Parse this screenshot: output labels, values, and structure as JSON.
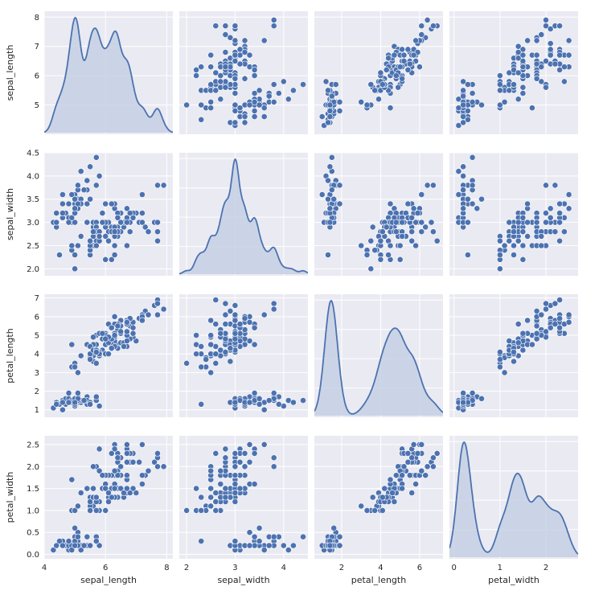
{
  "chart_data": {
    "type": "scatter",
    "kind": "pairplot",
    "diagonal": "kde",
    "variables": [
      "sepal_length",
      "sepal_width",
      "petal_length",
      "petal_width"
    ],
    "axes": {
      "sepal_length": {
        "label": "sepal_length",
        "range": [
          4.0,
          8.2
        ],
        "ticks": [
          4,
          6,
          8
        ],
        "ytick_labels": [
          5,
          6,
          7,
          8
        ]
      },
      "sepal_width": {
        "label": "sepal_width",
        "range": [
          1.85,
          4.5
        ],
        "ticks": [
          2,
          3,
          4
        ],
        "ytick_labels": [
          2.0,
          2.5,
          3.0,
          3.5,
          4.0,
          4.5
        ]
      },
      "petal_length": {
        "label": "petal_length",
        "range": [
          0.6,
          7.2
        ],
        "ticks": [
          2,
          4,
          6
        ],
        "ytick_labels": [
          1,
          2,
          3,
          4,
          5,
          6,
          7
        ]
      },
      "petal_width": {
        "label": "petal_width",
        "range": [
          -0.1,
          2.7
        ],
        "ticks": [
          0,
          1,
          2
        ],
        "ytick_labels": [
          0.0,
          0.5,
          1.0,
          1.5,
          2.0,
          2.5
        ]
      }
    },
    "grid": true,
    "marker_color": "#4C72B0",
    "kde_fill": "#C6D0E4",
    "background": "#EAEAF2",
    "data": [
      [
        5.1,
        3.5,
        1.4,
        0.2
      ],
      [
        4.9,
        3.0,
        1.4,
        0.2
      ],
      [
        4.7,
        3.2,
        1.3,
        0.2
      ],
      [
        4.6,
        3.1,
        1.5,
        0.2
      ],
      [
        5.0,
        3.6,
        1.4,
        0.2
      ],
      [
        5.4,
        3.9,
        1.7,
        0.4
      ],
      [
        4.6,
        3.4,
        1.4,
        0.3
      ],
      [
        5.0,
        3.4,
        1.5,
        0.2
      ],
      [
        4.4,
        2.9,
        1.4,
        0.2
      ],
      [
        4.9,
        3.1,
        1.5,
        0.1
      ],
      [
        5.4,
        3.7,
        1.5,
        0.2
      ],
      [
        4.8,
        3.4,
        1.6,
        0.2
      ],
      [
        4.8,
        3.0,
        1.4,
        0.1
      ],
      [
        4.3,
        3.0,
        1.1,
        0.1
      ],
      [
        5.8,
        4.0,
        1.2,
        0.2
      ],
      [
        5.7,
        4.4,
        1.5,
        0.4
      ],
      [
        5.4,
        3.9,
        1.3,
        0.4
      ],
      [
        5.1,
        3.5,
        1.4,
        0.3
      ],
      [
        5.7,
        3.8,
        1.7,
        0.3
      ],
      [
        5.1,
        3.8,
        1.5,
        0.3
      ],
      [
        5.4,
        3.4,
        1.7,
        0.2
      ],
      [
        5.1,
        3.7,
        1.5,
        0.4
      ],
      [
        4.6,
        3.6,
        1.0,
        0.2
      ],
      [
        5.1,
        3.3,
        1.7,
        0.5
      ],
      [
        4.8,
        3.4,
        1.9,
        0.2
      ],
      [
        5.0,
        3.0,
        1.6,
        0.2
      ],
      [
        5.0,
        3.4,
        1.6,
        0.4
      ],
      [
        5.2,
        3.5,
        1.5,
        0.2
      ],
      [
        5.2,
        3.4,
        1.4,
        0.2
      ],
      [
        4.7,
        3.2,
        1.6,
        0.2
      ],
      [
        4.8,
        3.1,
        1.6,
        0.2
      ],
      [
        5.4,
        3.4,
        1.5,
        0.4
      ],
      [
        5.2,
        4.1,
        1.5,
        0.1
      ],
      [
        5.5,
        4.2,
        1.4,
        0.2
      ],
      [
        4.9,
        3.1,
        1.5,
        0.2
      ],
      [
        5.0,
        3.2,
        1.2,
        0.2
      ],
      [
        5.5,
        3.5,
        1.3,
        0.2
      ],
      [
        4.9,
        3.6,
        1.4,
        0.1
      ],
      [
        4.4,
        3.0,
        1.3,
        0.2
      ],
      [
        5.1,
        3.4,
        1.5,
        0.2
      ],
      [
        5.0,
        3.5,
        1.3,
        0.3
      ],
      [
        4.5,
        2.3,
        1.3,
        0.3
      ],
      [
        4.4,
        3.2,
        1.3,
        0.2
      ],
      [
        5.0,
        3.5,
        1.6,
        0.6
      ],
      [
        5.1,
        3.8,
        1.9,
        0.4
      ],
      [
        4.8,
        3.0,
        1.4,
        0.3
      ],
      [
        5.1,
        3.8,
        1.6,
        0.2
      ],
      [
        4.6,
        3.2,
        1.4,
        0.2
      ],
      [
        5.3,
        3.7,
        1.5,
        0.2
      ],
      [
        5.0,
        3.3,
        1.4,
        0.2
      ],
      [
        7.0,
        3.2,
        4.7,
        1.4
      ],
      [
        6.4,
        3.2,
        4.5,
        1.5
      ],
      [
        6.9,
        3.1,
        4.9,
        1.5
      ],
      [
        5.5,
        2.3,
        4.0,
        1.3
      ],
      [
        6.5,
        2.8,
        4.6,
        1.5
      ],
      [
        5.7,
        2.8,
        4.5,
        1.3
      ],
      [
        6.3,
        3.3,
        4.7,
        1.6
      ],
      [
        4.9,
        2.4,
        3.3,
        1.0
      ],
      [
        6.6,
        2.9,
        4.6,
        1.3
      ],
      [
        5.2,
        2.7,
        3.9,
        1.4
      ],
      [
        5.0,
        2.0,
        3.5,
        1.0
      ],
      [
        5.9,
        3.0,
        4.2,
        1.5
      ],
      [
        6.0,
        2.2,
        4.0,
        1.0
      ],
      [
        6.1,
        2.9,
        4.7,
        1.4
      ],
      [
        5.6,
        2.9,
        3.6,
        1.3
      ],
      [
        6.7,
        3.1,
        4.4,
        1.4
      ],
      [
        5.6,
        3.0,
        4.5,
        1.5
      ],
      [
        5.8,
        2.7,
        4.1,
        1.0
      ],
      [
        6.2,
        2.2,
        4.5,
        1.5
      ],
      [
        5.6,
        2.5,
        3.9,
        1.1
      ],
      [
        5.9,
        3.2,
        4.8,
        1.8
      ],
      [
        6.1,
        2.8,
        4.0,
        1.3
      ],
      [
        6.3,
        2.5,
        4.9,
        1.5
      ],
      [
        6.1,
        2.8,
        4.7,
        1.2
      ],
      [
        6.4,
        2.9,
        4.3,
        1.3
      ],
      [
        6.6,
        3.0,
        4.4,
        1.4
      ],
      [
        6.8,
        2.8,
        4.8,
        1.4
      ],
      [
        6.7,
        3.0,
        5.0,
        1.7
      ],
      [
        6.0,
        2.9,
        4.5,
        1.5
      ],
      [
        5.7,
        2.6,
        3.5,
        1.0
      ],
      [
        5.5,
        2.4,
        3.8,
        1.1
      ],
      [
        5.5,
        2.4,
        3.7,
        1.0
      ],
      [
        5.8,
        2.7,
        3.9,
        1.2
      ],
      [
        6.0,
        2.7,
        5.1,
        1.6
      ],
      [
        5.4,
        3.0,
        4.5,
        1.5
      ],
      [
        6.0,
        3.4,
        4.5,
        1.6
      ],
      [
        6.7,
        3.1,
        4.7,
        1.5
      ],
      [
        6.3,
        2.3,
        4.4,
        1.3
      ],
      [
        5.6,
        3.0,
        4.1,
        1.3
      ],
      [
        5.5,
        2.5,
        4.0,
        1.3
      ],
      [
        5.5,
        2.6,
        4.4,
        1.2
      ],
      [
        6.1,
        3.0,
        4.6,
        1.4
      ],
      [
        5.8,
        2.6,
        4.0,
        1.2
      ],
      [
        5.0,
        2.3,
        3.3,
        1.0
      ],
      [
        5.6,
        2.7,
        4.2,
        1.3
      ],
      [
        5.7,
        3.0,
        4.2,
        1.2
      ],
      [
        5.7,
        2.9,
        4.2,
        1.3
      ],
      [
        6.2,
        2.9,
        4.3,
        1.3
      ],
      [
        5.1,
        2.5,
        3.0,
        1.1
      ],
      [
        5.7,
        2.8,
        4.1,
        1.3
      ],
      [
        6.3,
        3.3,
        6.0,
        2.5
      ],
      [
        5.8,
        2.7,
        5.1,
        1.9
      ],
      [
        7.1,
        3.0,
        5.9,
        2.1
      ],
      [
        6.3,
        2.9,
        5.6,
        1.8
      ],
      [
        6.5,
        3.0,
        5.8,
        2.2
      ],
      [
        7.6,
        3.0,
        6.6,
        2.1
      ],
      [
        4.9,
        2.5,
        4.5,
        1.7
      ],
      [
        7.3,
        2.9,
        6.3,
        1.8
      ],
      [
        6.7,
        2.5,
        5.8,
        1.8
      ],
      [
        7.2,
        3.6,
        6.1,
        2.5
      ],
      [
        6.5,
        3.2,
        5.1,
        2.0
      ],
      [
        6.4,
        2.7,
        5.3,
        1.9
      ],
      [
        6.8,
        3.0,
        5.5,
        2.1
      ],
      [
        5.7,
        2.5,
        5.0,
        2.0
      ],
      [
        5.8,
        2.8,
        5.1,
        2.4
      ],
      [
        6.4,
        3.2,
        5.3,
        2.3
      ],
      [
        6.5,
        3.0,
        5.5,
        1.8
      ],
      [
        7.7,
        3.8,
        6.7,
        2.2
      ],
      [
        7.7,
        2.6,
        6.9,
        2.3
      ],
      [
        6.0,
        2.2,
        5.0,
        1.5
      ],
      [
        6.9,
        3.2,
        5.7,
        2.3
      ],
      [
        5.6,
        2.8,
        4.9,
        2.0
      ],
      [
        7.7,
        2.8,
        6.7,
        2.0
      ],
      [
        6.3,
        2.7,
        4.9,
        1.8
      ],
      [
        6.7,
        3.3,
        5.7,
        2.1
      ],
      [
        7.2,
        3.2,
        6.0,
        1.8
      ],
      [
        6.2,
        2.8,
        4.8,
        1.8
      ],
      [
        6.1,
        3.0,
        4.9,
        1.8
      ],
      [
        6.4,
        2.8,
        5.6,
        2.1
      ],
      [
        7.2,
        3.0,
        5.8,
        1.6
      ],
      [
        7.4,
        2.8,
        6.1,
        1.9
      ],
      [
        7.9,
        3.8,
        6.4,
        2.0
      ],
      [
        6.4,
        2.8,
        5.6,
        2.2
      ],
      [
        6.3,
        2.8,
        5.1,
        1.5
      ],
      [
        6.1,
        2.6,
        5.6,
        1.4
      ],
      [
        7.7,
        3.0,
        6.1,
        2.3
      ],
      [
        6.3,
        3.4,
        5.6,
        2.4
      ],
      [
        6.4,
        3.1,
        5.5,
        1.8
      ],
      [
        6.0,
        3.0,
        4.8,
        1.8
      ],
      [
        6.9,
        3.1,
        5.4,
        2.1
      ],
      [
        6.7,
        3.1,
        5.6,
        2.4
      ],
      [
        6.9,
        3.1,
        5.1,
        2.3
      ],
      [
        5.8,
        2.7,
        5.1,
        1.9
      ],
      [
        6.8,
        3.2,
        5.9,
        2.3
      ],
      [
        6.7,
        3.3,
        5.7,
        2.5
      ],
      [
        6.7,
        3.0,
        5.2,
        2.3
      ],
      [
        6.3,
        2.5,
        5.0,
        1.9
      ],
      [
        6.5,
        3.0,
        5.2,
        2.0
      ],
      [
        6.2,
        3.4,
        5.4,
        2.3
      ],
      [
        5.9,
        3.0,
        5.1,
        1.8
      ]
    ]
  }
}
